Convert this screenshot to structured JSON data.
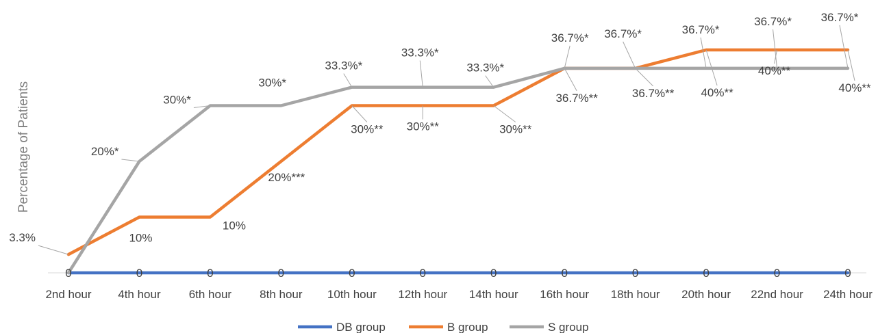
{
  "chart_data": {
    "type": "line",
    "ylabel": "Percentage of Patients",
    "xlabel": "",
    "title": "",
    "ylim": [
      0,
      45
    ],
    "grid": false,
    "legend_position": "bottom",
    "categories": [
      "2nd hour",
      "4th  hour",
      "6th  hour",
      "8th hour",
      "10th hour",
      "12th hour",
      "14th hour",
      "16th hour",
      "18th hour",
      "20th hour",
      "22nd hour",
      "24th hour"
    ],
    "series": [
      {
        "name": "DB group",
        "color": "#4472c4",
        "values": [
          0,
          0,
          0,
          0,
          0,
          0,
          0,
          0,
          0,
          0,
          0,
          0
        ],
        "labels": [
          "0",
          "0",
          "0",
          "0",
          "0",
          "0",
          "0",
          "0",
          "0",
          "0",
          "0",
          "0"
        ]
      },
      {
        "name": "B group",
        "color": "#ed7d31",
        "values": [
          3.3,
          10,
          10,
          20,
          30,
          30,
          30,
          36.7,
          36.7,
          40,
          40,
          40
        ],
        "labels": [
          "3.3%",
          "10%",
          "10%",
          "20%***",
          "30%**",
          "30%**",
          "30%**",
          "36.7%**",
          "36.7%**",
          "40%**",
          "40%**",
          "40%**"
        ]
      },
      {
        "name": "S group",
        "color": "#a5a5a5",
        "values": [
          0,
          20,
          30,
          30,
          33.3,
          33.3,
          33.3,
          36.7,
          36.7,
          36.7,
          36.7,
          36.7
        ],
        "labels": [
          "",
          "20%*",
          "30%*",
          "30%*",
          "33.3%*",
          "33.3%*",
          "33.3%*",
          "36.7%*",
          "36.7%*",
          "36.7%*",
          "36.7%*",
          "36.7%*"
        ]
      }
    ]
  }
}
